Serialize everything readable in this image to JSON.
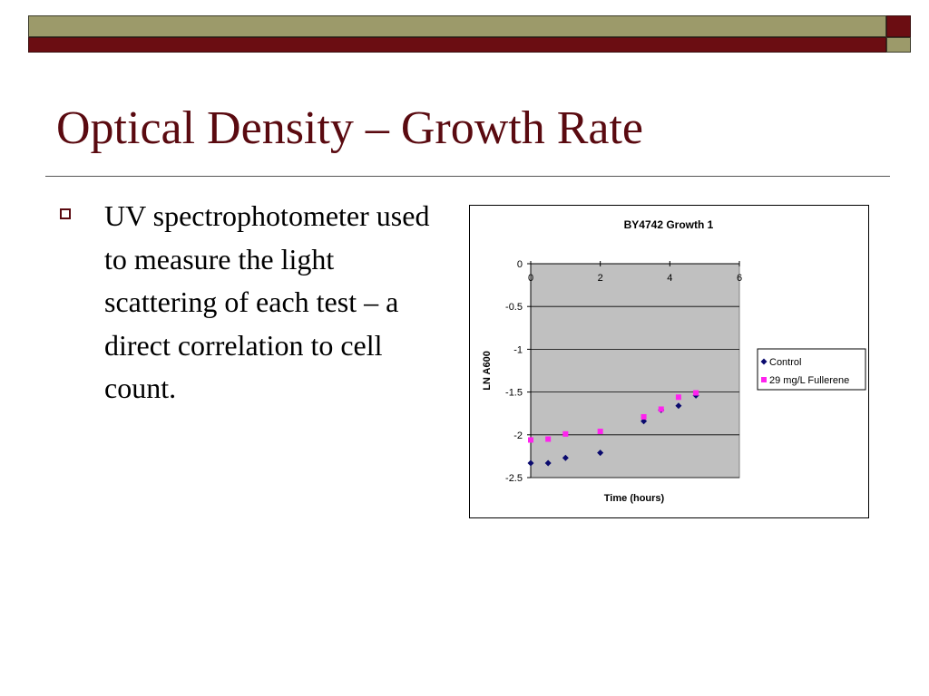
{
  "slide": {
    "title": "Optical Density – Growth Rate",
    "bullet": "UV spectrophotometer used to measure the light scattering of each test – a direct correlation to cell count."
  },
  "colors": {
    "olive": "#9c9a6a",
    "maroon": "#6b0d12",
    "title_text": "#5a0a10",
    "plot_area": "#c0c0c0",
    "control": "#0a0a6e",
    "fullerene": "#ff22ee"
  },
  "chart_data": {
    "type": "scatter",
    "title": "BY4742 Growth 1",
    "xlabel": "Time (hours)",
    "ylabel": "LN A600",
    "xlim": [
      0,
      6
    ],
    "ylim": [
      -2.5,
      0
    ],
    "xticks": [
      0,
      2,
      4,
      6
    ],
    "yticks": [
      0,
      -0.5,
      -1,
      -1.5,
      -2,
      -2.5
    ],
    "grid": "horizontal",
    "legend": "right",
    "series": [
      {
        "name": "Control",
        "marker": "diamond",
        "x": [
          0,
          0.5,
          1,
          2,
          3.25,
          3.75,
          4.25,
          4.75
        ],
        "y": [
          -2.33,
          -2.33,
          -2.27,
          -2.21,
          -1.84,
          -1.71,
          -1.66,
          -1.54
        ]
      },
      {
        "name": "29 mg/L Fullerene",
        "marker": "square",
        "x": [
          0,
          0.5,
          1,
          2,
          3.25,
          3.75,
          4.25,
          4.75
        ],
        "y": [
          -2.06,
          -2.05,
          -1.99,
          -1.96,
          -1.79,
          -1.7,
          -1.56,
          -1.51
        ]
      }
    ]
  }
}
